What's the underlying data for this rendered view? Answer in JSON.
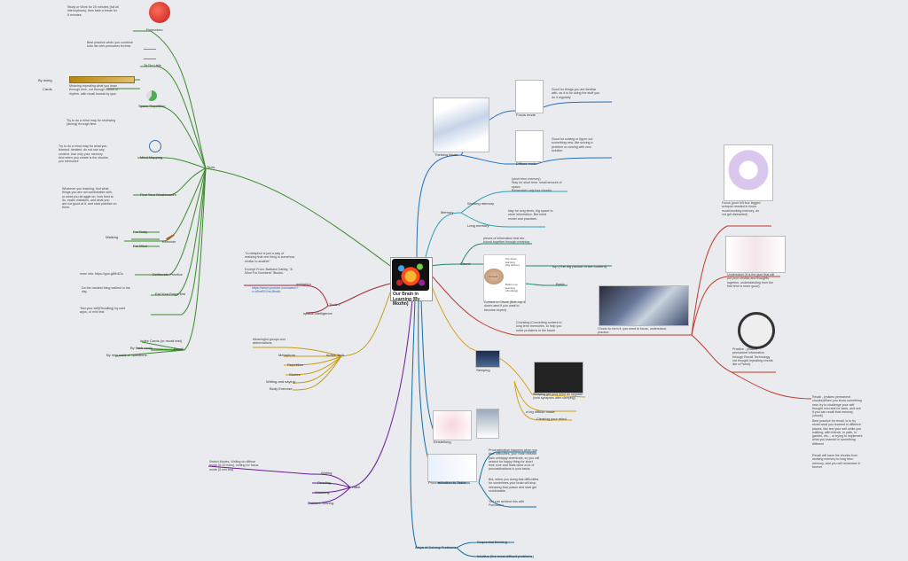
{
  "center": {
    "title": "Our Brain in\nLearning (By\nMozhn)"
  },
  "colors": {
    "tools": "#3a8a2a",
    "memory": "#1f6fc4",
    "chunk": "#c0392b",
    "insight": "#8e44ad",
    "metaphor": "#b8860b",
    "practice": "#c0392b",
    "sleep": "#d4a017",
    "habit": "#6a1b9a",
    "procr": "#0e6ea8"
  },
  "tools": {
    "label": "Tools",
    "pomodoro": {
      "label": "Pomodoro",
      "note": "Study or Work for 25 minutes (full all\ninterruptions), then take a break for\n5 minutes"
    },
    "todo": {
      "label": "To Do Lists",
      "note": "Best practice when you combine\ntodo list with pomodoro technic"
    },
    "spaced": {
      "label": "Space Repetition",
      "note": "Meaning repeating what you learn\nthrough time, not through courts or\nrhythm, with recall boosts by quiz"
    },
    "spaced_leaves": [
      "By doing",
      "Cards"
    ],
    "mindmap": {
      "label": "Mind Mapping",
      "note1": "Try to do a mind map for reviewing\n(during) through time.",
      "note2": "Try to do a mind map for what you\nlearned, iterated, do not use any\ncontent. Use only your memory\nAnd when you create is the chunks\nyou memorize"
    },
    "weak": {
      "label": "Find Your Weaknesses",
      "note": "Whatever you learning, find what\nthings you are not comfortable with,\nor what you struggle on, how best to\ndo, make mistakes, and what you\nare not good at it, and start practice on\nthem."
    },
    "exercise": {
      "label": "Exercise",
      "leaves": [
        "For Body",
        "Walking",
        "For Mind"
      ]
    },
    "deliberate": {
      "label": "Deliberate Practice",
      "note": "more info: https://goo.gl/ifb4Ds"
    },
    "eat": {
      "label": "Eat Your Frogs first",
      "note": "Do the hardest thing earliest in the\nday."
    },
    "test": {
      "label": "Test your self",
      "note": "Test your self(Recalling) by card\napps, or mini test"
    },
    "recall": {
      "label": "Recall",
      "leaves": [
        "Index Cards (or recall test)",
        "By flash cards",
        "By mini tests or questions"
      ]
    }
  },
  "metaphor": {
    "label": "Tools 2",
    "quote": "\"A metaphor is just a way of\nrealizing that one thing is somehow\nsimilar to another\"",
    "excerpt": "Excerpt From: Barbara Oakley, \"A\nMind For Numbers\" iBooks.",
    "link": "https://www.youtube.com/watch?\nv=d5mEEOwUBsdA",
    "leaves": [
      "metaphor",
      "spatial intelligence"
    ]
  },
  "active": {
    "label": "Active Tech",
    "note": "Meaningful groups and\nabbreviations",
    "leaves": [
      "Metaphors",
      "Repetition",
      "Stories",
      "Writing and saying",
      "Body Exercise"
    ]
  },
  "habit": {
    "label": "Habit",
    "note": "Switch Modes, Writing do diffuse\nmode (5-10 mins), writing for focus\nmode (5 min tea)",
    "leaves": [
      "Writing",
      "Reading",
      "Watching",
      "Problem Solving"
    ]
  },
  "thinking": {
    "label": "Thinking Mode",
    "focus": {
      "label": "Focus mode",
      "note": "Good for things you are familiar\nwith, as it is for doing the stuff you\ndo it regularly"
    },
    "diffuse": {
      "label": "Diffuse mode",
      "note": "Good for solving or figure out\nsomething new, like solving a\nproblem or coming with new\nsolution"
    }
  },
  "memory": {
    "label": "Memory",
    "working": {
      "label": "Working memory",
      "note": "(short term memory)\nStay for short time, small amount of\nspace.\nRemember only four chunks"
    },
    "long": {
      "label": "Long memory",
      "note": "stay for long times, big space to\nstore information. But need\nmodel and practices"
    }
  },
  "chunk": {
    "label": "Chunk",
    "top": "pieces of information that are\nbound together through meaning",
    "bigpic": "Top (The big picture of the content)",
    "basic": "Basic",
    "context": "Context to Chunk (Both top &\ndown used if you want to\nbecome expert)",
    "diagram": {
      "top": "Top down\nlearning\n(big picture)",
      "context": "Context",
      "bottom": "Bottom up\nlearning\n(chunking)"
    },
    "chunking": "Chunking (Converting content to\nlong term memories, to help you\nsolve problems in the future",
    "image_caption": "Chunk do form it, you need to focus, understand,\npractice",
    "focus": "Focus (your full four legged\noctopus needed in focus\nmode/working memory, do\nnot get distracted)",
    "understand": "Understand (It is the glue that will\nput your chunks and thoughts\ntogether, understanding from the\nfirst time is more good)",
    "practice": "Practice - (makes\npermanent information\nthrough Recall Technology\nnot thought repeating events\nlike a Parrot)",
    "recall_notes": [
      "Recall - (makes permanent\nchunks)When you know something\nnew, try to challenge your self\nthought mini test for facts, and see\nif you can recall that memory\n(chunk)",
      "Best practice for recall, is to try\nrecall what you learned in different\nplaces, like test your self while you\nwalking, with friends, in path, in\ngarden, etc... or trying to implement\nwhat you learned in something\ndifferent",
      "Recall will have the chunks from\nworking memory to long term\nmemory, and you will remember it\nforever"
    ]
  },
  "sleep": {
    "label": "Sleeping",
    "note": "Sleeping get your mind an upgrade\n(new synapses after sleeping)",
    "leaves": [
      "a big diffuse mode",
      "Clearing your mind"
    ]
  },
  "einstellung": {
    "label": "Einstellung"
  },
  "procr": {
    "label": "Procrastination to Tasks",
    "notes": [
      "Procrastination happens when you\nface difficulties, your brain release\npain unhappy chemicals, so you will\nsearch for happy thing for short\ntime cure and thats done a lot of\nprocrastinations in your tasks.",
      "But, when you doing that difficulties\nfor sometimes your brain will stop\nreleasing that poison and start get\ncomfortable.",
      "You can achieve this with\nPomodoro"
    ]
  },
  "ways": {
    "label": "Ways of Solving Problems",
    "leaves": [
      "Sequential thinking",
      "Intuitive (the most difficult problems)"
    ]
  }
}
